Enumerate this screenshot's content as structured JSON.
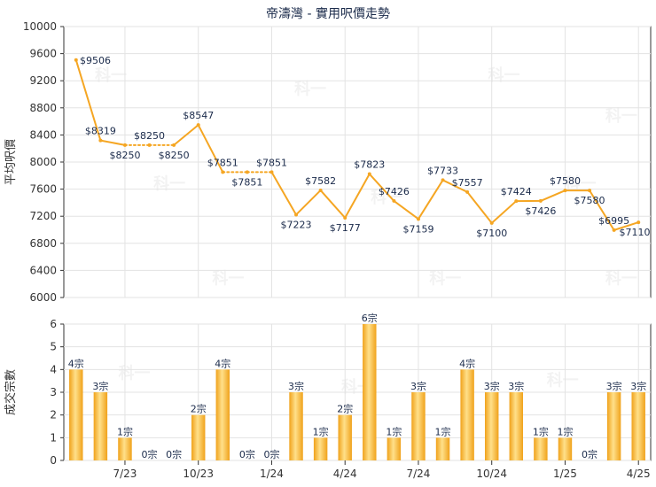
{
  "title": "帝濤灣 - 實用呎價走勢",
  "watermark": "科一",
  "colors": {
    "line": "#f5a623",
    "bar_light": "#ffe08a",
    "bar_dark": "#f0a21b",
    "grid": "#e3e3e3",
    "axis": "#333333",
    "text": "#1a2a4a"
  },
  "chart_data": [
    {
      "type": "line",
      "ylabel": "平均呎價",
      "ylim": [
        6000,
        10000
      ],
      "yticks": [
        6000,
        6400,
        6800,
        7200,
        7600,
        8000,
        8400,
        8800,
        9200,
        9600,
        10000
      ],
      "segments": [
        {
          "from": 2,
          "to": 3,
          "style": "dotted"
        },
        {
          "from": 3,
          "to": 4,
          "style": "dotted"
        },
        {
          "from": 6,
          "to": 7,
          "style": "dotted"
        },
        {
          "from": 7,
          "to": 8,
          "style": "dotted"
        }
      ],
      "points": [
        {
          "i": 0,
          "value": 9506,
          "label": "$9506",
          "pos": "right"
        },
        {
          "i": 1,
          "value": 8319,
          "label": "$8319",
          "pos": "above"
        },
        {
          "i": 2,
          "value": 8250,
          "label": "$8250",
          "pos": "below"
        },
        {
          "i": 3,
          "value": 8250,
          "label": "$8250",
          "pos": "above"
        },
        {
          "i": 4,
          "value": 8250,
          "label": "$8250",
          "pos": "below"
        },
        {
          "i": 5,
          "value": 8547,
          "label": "$8547",
          "pos": "above"
        },
        {
          "i": 6,
          "value": 7851,
          "label": "$7851",
          "pos": "above"
        },
        {
          "i": 7,
          "value": 7851,
          "label": "$7851",
          "pos": "below"
        },
        {
          "i": 8,
          "value": 7851,
          "label": "$7851",
          "pos": "above"
        },
        {
          "i": 9,
          "value": 7223,
          "label": "$7223",
          "pos": "below"
        },
        {
          "i": 10,
          "value": 7582,
          "label": "$7582",
          "pos": "above"
        },
        {
          "i": 11,
          "value": 7177,
          "label": "$7177",
          "pos": "below"
        },
        {
          "i": 12,
          "value": 7823,
          "label": "$7823",
          "pos": "above"
        },
        {
          "i": 13,
          "value": 7426,
          "label": "$7426",
          "pos": "above"
        },
        {
          "i": 14,
          "value": 7159,
          "label": "$7159",
          "pos": "below"
        },
        {
          "i": 15,
          "value": 7733,
          "label": "$7733",
          "pos": "above"
        },
        {
          "i": 16,
          "value": 7557,
          "label": "$7557",
          "pos": "above"
        },
        {
          "i": 17,
          "value": 7100,
          "label": "$7100",
          "pos": "below"
        },
        {
          "i": 18,
          "value": 7424,
          "label": "$7424",
          "pos": "above"
        },
        {
          "i": 19,
          "value": 7426,
          "label": "$7426",
          "pos": "below"
        },
        {
          "i": 20,
          "value": 7580,
          "label": "$7580",
          "pos": "above"
        },
        {
          "i": 21,
          "value": 7580,
          "label": "$7580",
          "pos": "below"
        },
        {
          "i": 22,
          "value": 6995,
          "label": "$6995",
          "pos": "above"
        },
        {
          "i": 23,
          "value": 7110,
          "label": "$7110",
          "pos": "below"
        }
      ]
    },
    {
      "type": "bar",
      "ylabel": "成交宗數",
      "ylim": [
        0,
        6
      ],
      "yticks": [
        0,
        1,
        2,
        3,
        4,
        5,
        6
      ],
      "values": [
        4,
        3,
        1,
        0,
        0,
        2,
        4,
        0,
        0,
        3,
        1,
        2,
        6,
        1,
        3,
        1,
        4,
        3,
        3,
        1,
        1,
        0,
        3,
        3
      ],
      "bar_labels": [
        "4宗",
        "3宗",
        "1宗",
        "0宗",
        "0宗",
        "2宗",
        "4宗",
        "0宗",
        "0宗",
        "3宗",
        "1宗",
        "2宗",
        "6宗",
        "1宗",
        "3宗",
        "1宗",
        "4宗",
        "3宗",
        "3宗",
        "1宗",
        "1宗",
        "0宗",
        "3宗",
        "3宗"
      ],
      "xtick_labels": [
        {
          "i": 2,
          "label": "7/23"
        },
        {
          "i": 5,
          "label": "10/23"
        },
        {
          "i": 8,
          "label": "1/24"
        },
        {
          "i": 11,
          "label": "4/24"
        },
        {
          "i": 14,
          "label": "7/24"
        },
        {
          "i": 17,
          "label": "10/24"
        },
        {
          "i": 20,
          "label": "1/25"
        },
        {
          "i": 23,
          "label": "4/25"
        }
      ]
    }
  ]
}
